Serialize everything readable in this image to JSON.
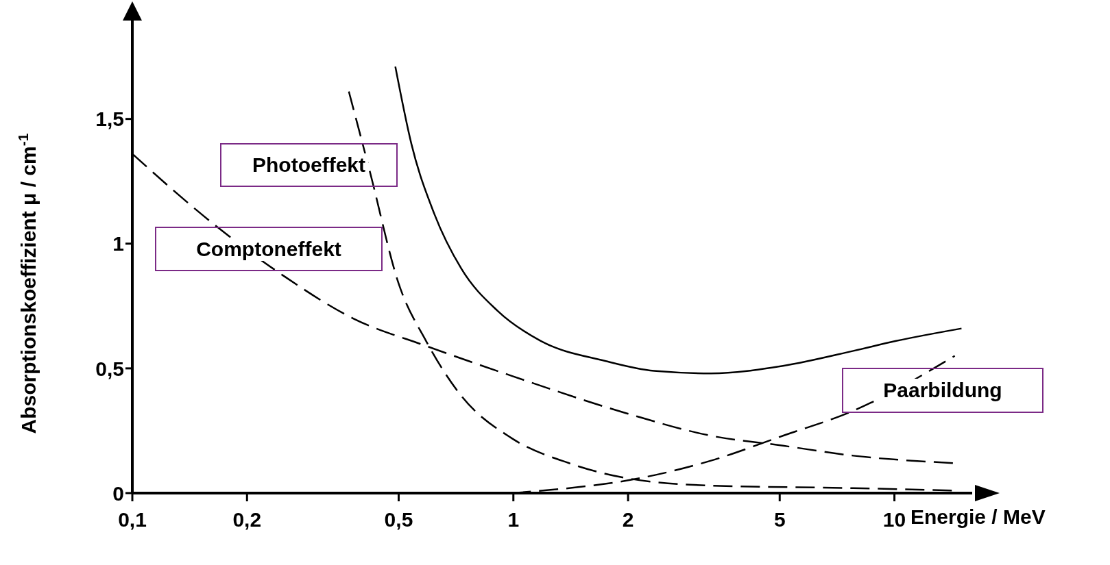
{
  "chart_data": {
    "type": "line",
    "xlabel": "Energie / MeV",
    "ylabel": "Absorptionskoeffizient μ / cm$^{-1}$",
    "log": "x",
    "grid": false,
    "legend": false,
    "marker": "none",
    "xlim": [
      0.1,
      16
    ],
    "ylim": [
      0,
      1.9
    ],
    "xticks": [
      {
        "value": 0.1,
        "label": "0,1"
      },
      {
        "value": 0.2,
        "label": "0,2"
      },
      {
        "value": 0.5,
        "label": "0,5"
      },
      {
        "value": 1,
        "label": "1"
      },
      {
        "value": 2,
        "label": "2"
      },
      {
        "value": 5,
        "label": "5"
      },
      {
        "value": 10,
        "label": "10"
      }
    ],
    "yticks": [
      0,
      {
        "value": 0.5,
        "label": "0,5"
      },
      1,
      {
        "value": 1.5,
        "label": "1,5"
      }
    ],
    "series": [
      {
        "color": "#000000",
        "line_style": "solid",
        "x": [
          0.49,
          0.54,
          0.62,
          0.73,
          0.91,
          1.18,
          1.74,
          2.34,
          3.3,
          5.1,
          7.8,
          10.1,
          15
        ],
        "values": [
          1.71,
          1.4,
          1.12,
          0.9,
          0.73,
          0.61,
          0.53,
          0.49,
          0.48,
          0.51,
          0.57,
          0.61,
          0.66
        ]
      },
      {
        "name": "Photoeffekt",
        "color": "#000000",
        "line_style": "dashed",
        "x": [
          0.37,
          0.42,
          0.5,
          0.59,
          0.73,
          0.99,
          1.4,
          1.98,
          3.3,
          7.8,
          14.4
        ],
        "values": [
          1.61,
          1.29,
          0.84,
          0.61,
          0.39,
          0.22,
          0.12,
          0.06,
          0.03,
          0.02,
          0.01
        ]
      },
      {
        "name": "Comptoneffekt",
        "color": "#000000",
        "line_style": "dashed",
        "x": [
          0.1,
          0.16,
          0.25,
          0.38,
          0.59,
          0.99,
          1.98,
          3.3,
          5.1,
          7.8,
          14.4
        ],
        "values": [
          1.36,
          1.09,
          0.87,
          0.7,
          0.59,
          0.47,
          0.32,
          0.23,
          0.19,
          0.15,
          0.12
        ]
      },
      {
        "name": "Paarbildung",
        "color": "#000000",
        "line_style": "dashed",
        "x": [
          0.99,
          1.4,
          1.98,
          3.3,
          5.1,
          7.8,
          14.4
        ],
        "values": [
          0,
          0.02,
          0.05,
          0.13,
          0.23,
          0.33,
          0.55
        ]
      }
    ]
  }
}
